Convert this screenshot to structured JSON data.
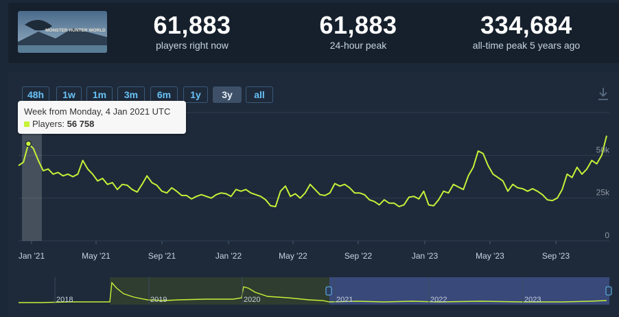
{
  "stats": [
    {
      "value": "61,883",
      "label": "players right now"
    },
    {
      "value": "61,883",
      "label": "24-hour peak"
    },
    {
      "value": "334,684",
      "label": "all-time peak 5 years ago"
    }
  ],
  "game_logo": "MONSTER HUNTER WORLD",
  "range_buttons": [
    "48h",
    "1w",
    "1m",
    "3m",
    "6m",
    "1y",
    "3y",
    "all"
  ],
  "active_range": "3y",
  "tooltip": {
    "title": "Week from Monday, 4 Jan 2021 UTC",
    "series_label": "Players:",
    "value": "56 758"
  },
  "colors": {
    "line": "#c6f238",
    "background": "#1e2a3a",
    "accent": "#67c1f5"
  },
  "chart_data": {
    "type": "line",
    "x_tick_labels": [
      "Jan '21",
      "May '21",
      "Sep '21",
      "Jan '22",
      "May '22",
      "Sep '22",
      "Jan '23",
      "May '23",
      "Sep '23"
    ],
    "y_tick_labels": [
      "0",
      "25k",
      "50k"
    ],
    "ylim": [
      0,
      75000
    ],
    "grid": true,
    "series": [
      {
        "values": [
          44000,
          46000,
          56758,
          54000,
          47000,
          41000,
          42000,
          39000,
          40000,
          38000,
          39000,
          37500,
          39000,
          47000,
          42000,
          39000,
          35000,
          36500,
          33000,
          34000,
          30000,
          33000,
          32500,
          30000,
          28500,
          33000,
          38000,
          34000,
          32500,
          29000,
          28000,
          31000,
          29000,
          26500,
          26500,
          24500,
          26000,
          27000,
          26000,
          25000,
          27000,
          28000,
          27500,
          26000,
          30000,
          29000,
          30000,
          28000,
          27000,
          26000,
          24000,
          20500,
          20000,
          29000,
          32000,
          26000,
          27500,
          25000,
          28000,
          33000,
          30000,
          27000,
          26500,
          28000,
          33500,
          32000,
          33000,
          31000,
          28000,
          28000,
          27000,
          24000,
          23000,
          21000,
          24000,
          22000,
          22000,
          20000,
          21000,
          25500,
          26000,
          24500,
          29000,
          21000,
          20500,
          24000,
          29000,
          28000,
          33000,
          31500,
          30000,
          38000,
          43000,
          52500,
          51000,
          44000,
          39000,
          37000,
          35000,
          29000,
          33000,
          31000,
          30500,
          29000,
          30500,
          29000,
          27000,
          24000,
          23500,
          25000,
          30000,
          39000,
          37000,
          43000,
          39000,
          42000,
          47000,
          45000,
          50000,
          61500
        ]
      }
    ],
    "navigator": {
      "x_labels": [
        "2018",
        "2019",
        "2020",
        "2021",
        "2022",
        "2023"
      ]
    }
  }
}
